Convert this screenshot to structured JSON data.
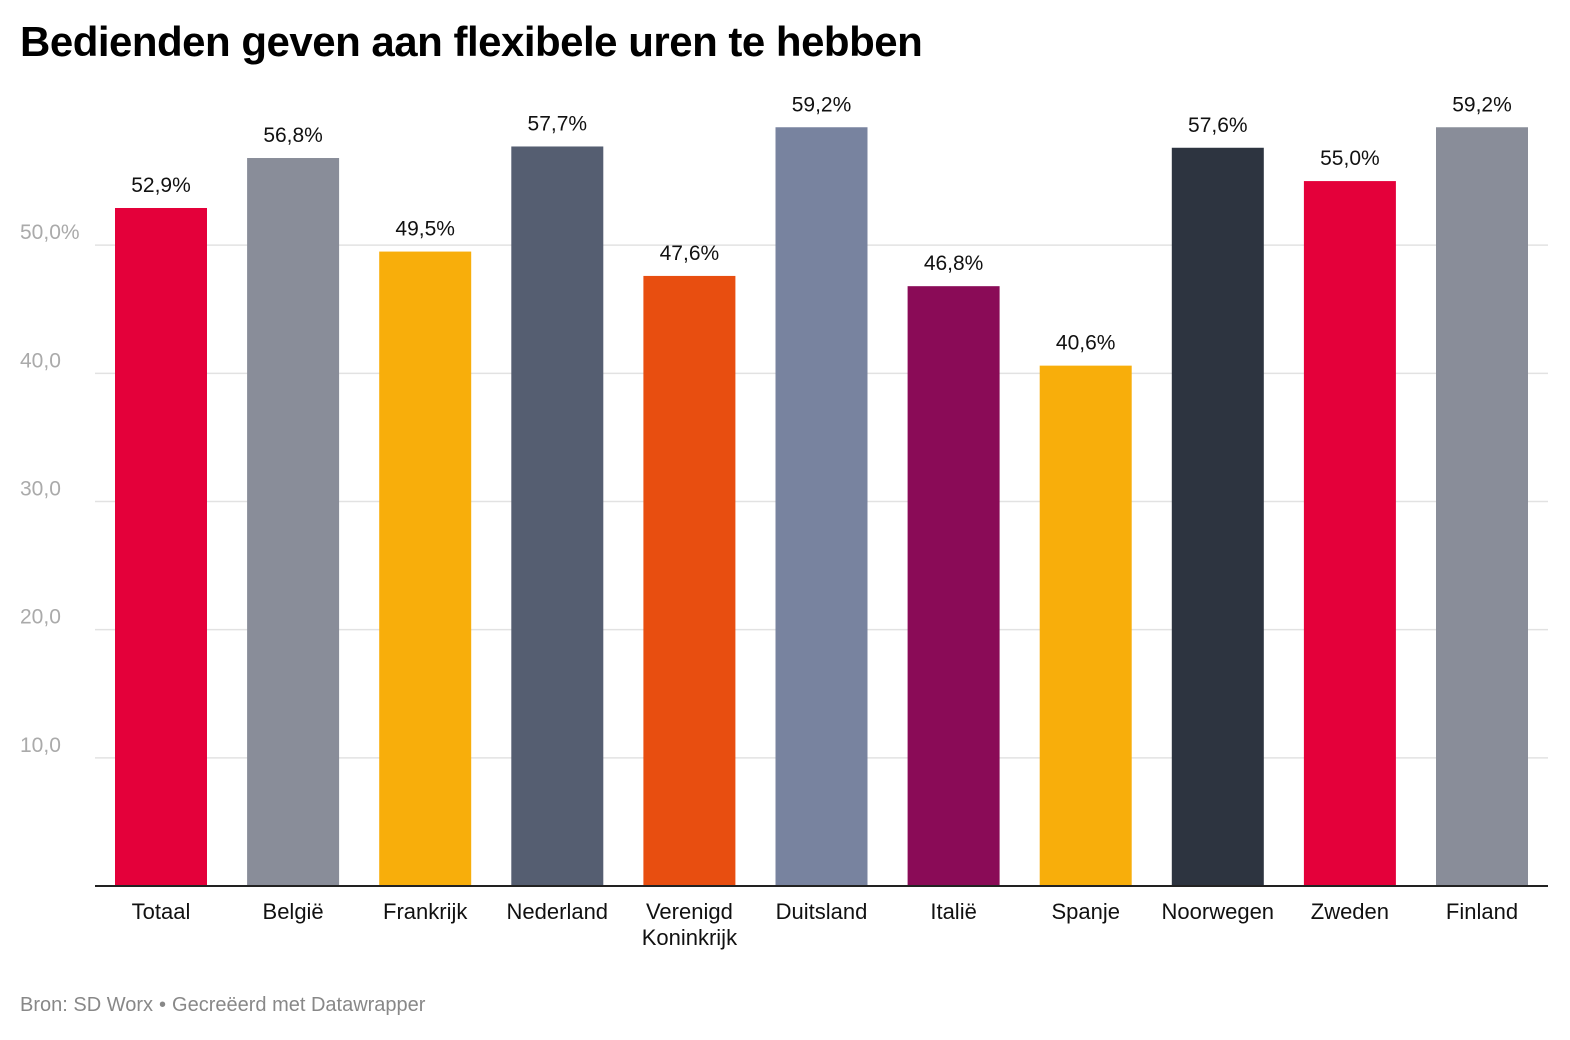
{
  "title": "Bedienden geven aan flexibele uren te hebben",
  "footer": {
    "source": "Bron: SD Worx",
    "separator": "•",
    "credit": "Gecreëerd met Datawrapper"
  },
  "chart_data": {
    "type": "bar",
    "title": "Bedienden geven aan flexibele uren te hebben",
    "xlabel": "",
    "ylabel": "",
    "ylim": [
      0,
      60
    ],
    "yticks": [
      {
        "value": 10,
        "label": "10,0"
      },
      {
        "value": 20,
        "label": "20,0"
      },
      {
        "value": 30,
        "label": "30,0"
      },
      {
        "value": 40,
        "label": "40,0"
      },
      {
        "value": 50,
        "label": "50,0%"
      }
    ],
    "grid": true,
    "categories": [
      [
        "Totaal"
      ],
      [
        "België"
      ],
      [
        "Frankrijk"
      ],
      [
        "Nederland"
      ],
      [
        "Verenigd",
        "Koninkrijk"
      ],
      [
        "Duitsland"
      ],
      [
        "Italië"
      ],
      [
        "Spanje"
      ],
      [
        "Noorwegen"
      ],
      [
        "Zweden"
      ],
      [
        "Finland"
      ]
    ],
    "values": [
      52.9,
      56.8,
      49.5,
      57.7,
      47.6,
      59.2,
      46.8,
      40.6,
      57.6,
      55.0,
      59.2
    ],
    "labels": [
      "52,9%",
      "56,8%",
      "49,5%",
      "57,7%",
      "47,6%",
      "59,2%",
      "46,8%",
      "40,6%",
      "57,6%",
      "55,0%",
      "59,2%"
    ],
    "colors": [
      "#e4003a",
      "#898d99",
      "#f8ae0b",
      "#555e71",
      "#e84e10",
      "#78839f",
      "#8a0b57",
      "#f8ae0b",
      "#2d3440",
      "#e4003a",
      "#898d99"
    ]
  }
}
